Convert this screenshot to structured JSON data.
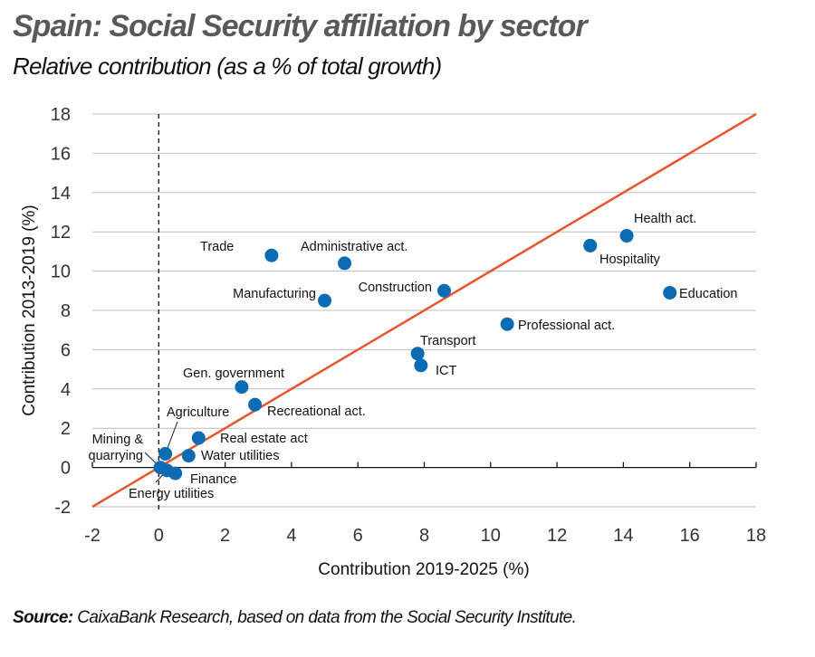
{
  "title": "Spain: Social Security affiliation by sector",
  "subtitle": "Relative contribution (as a % of total growth)",
  "source_label": "Source:",
  "source_text": "CaixaBank Research, based on data from the Social Security Institute.",
  "chart_data": {
    "type": "scatter",
    "xlabel": "Contribution 2019-2025 (%)",
    "ylabel": "Contribution 2013-2019 (%)",
    "xlim": [
      -2,
      18
    ],
    "ylim": [
      -2,
      18
    ],
    "xticks": [
      -2,
      0,
      2,
      4,
      6,
      8,
      10,
      12,
      14,
      16,
      18
    ],
    "yticks": [
      -2,
      0,
      2,
      4,
      6,
      8,
      10,
      12,
      14,
      16,
      18
    ],
    "grid": "horizontal",
    "reference_line": {
      "type": "45-degree",
      "color": "#E8562A"
    },
    "marker_color": "#0B6BB5",
    "points": [
      {
        "label": "Trade",
        "x": 3.4,
        "y": 10.8
      },
      {
        "label": "Administrative act.",
        "x": 5.6,
        "y": 10.4
      },
      {
        "label": "Manufacturing",
        "x": 5.0,
        "y": 8.5
      },
      {
        "label": "Construction",
        "x": 8.6,
        "y": 9.0
      },
      {
        "label": "Health act.",
        "x": 14.1,
        "y": 11.8
      },
      {
        "label": "Hospitality",
        "x": 13.0,
        "y": 11.3
      },
      {
        "label": "Education",
        "x": 15.4,
        "y": 8.9
      },
      {
        "label": "Professional act.",
        "x": 10.5,
        "y": 7.3
      },
      {
        "label": "Transport",
        "x": 7.8,
        "y": 5.8
      },
      {
        "label": "ICT",
        "x": 7.9,
        "y": 5.2
      },
      {
        "label": "Gen. government",
        "x": 2.5,
        "y": 4.1
      },
      {
        "label": "Recreational act.",
        "x": 2.9,
        "y": 3.2
      },
      {
        "label": "Real estate act",
        "x": 1.2,
        "y": 1.5
      },
      {
        "label": "Water utilities",
        "x": 0.9,
        "y": 0.6
      },
      {
        "label": "Agriculture",
        "x": 0.2,
        "y": 0.7
      },
      {
        "label": "Mining & quarrying",
        "x": 0.05,
        "y": 0.0
      },
      {
        "label": "Energy utilities",
        "x": 0.25,
        "y": -0.15
      },
      {
        "label": "Finance",
        "x": 0.5,
        "y": -0.3
      }
    ]
  }
}
